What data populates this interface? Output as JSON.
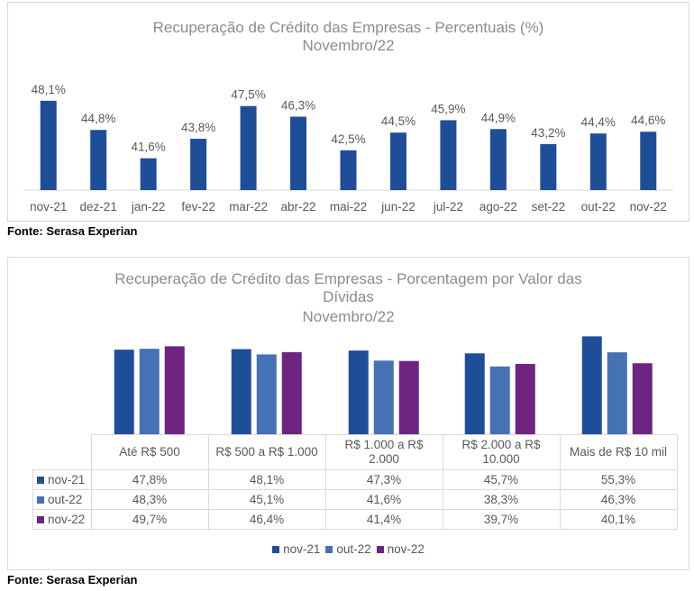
{
  "chart_data": [
    {
      "type": "bar",
      "title": "Recuperação de Crédito das Empresas - Percentuais (%)",
      "subtitle": "Novembro/22",
      "categories": [
        "nov-21",
        "dez-21",
        "jan-22",
        "fev-22",
        "mar-22",
        "abr-22",
        "mai-22",
        "jun-22",
        "jul-22",
        "ago-22",
        "set-22",
        "out-22",
        "nov-22"
      ],
      "values": [
        48.1,
        44.8,
        41.6,
        43.8,
        47.5,
        46.3,
        42.5,
        44.5,
        45.9,
        44.9,
        43.2,
        44.4,
        44.6
      ],
      "labels": [
        "48,1%",
        "44,8%",
        "41,6%",
        "43,8%",
        "47,5%",
        "46,3%",
        "42,5%",
        "44,5%",
        "45,9%",
        "44,9%",
        "43,2%",
        "44,4%",
        "44,6%"
      ],
      "ylim": [
        38,
        49
      ],
      "color": "#1f4e99",
      "grid": false
    },
    {
      "type": "bar",
      "title": "Recuperação de Crédito das Empresas - Porcentagem por Valor das Dívidas",
      "subtitle": "Novembro/22",
      "categories": [
        "Até R$ 500",
        "R$ 500 a R$ 1.000",
        "R$ 1.000 a R$ 2.000",
        "R$ 2.000 a R$ 10.000",
        "Mais de R$ 10 mil"
      ],
      "series": [
        {
          "name": "nov-21",
          "color": "#1f4e99",
          "values": [
            47.8,
            48.1,
            47.3,
            45.7,
            55.3
          ],
          "labels": [
            "47,8%",
            "48,1%",
            "47,3%",
            "45,7%",
            "55,3%"
          ]
        },
        {
          "name": "out-22",
          "color": "#4472b4",
          "values": [
            48.3,
            45.1,
            41.6,
            38.3,
            46.3
          ],
          "labels": [
            "48,3%",
            "45,1%",
            "41,6%",
            "38,3%",
            "46,3%"
          ]
        },
        {
          "name": "nov-22",
          "color": "#6e2481",
          "values": [
            49.7,
            46.4,
            41.4,
            39.7,
            40.1
          ],
          "labels": [
            "49,7%",
            "46,4%",
            "41,4%",
            "39,7%",
            "40,1%"
          ]
        }
      ],
      "ylim": [
        0,
        56
      ],
      "data_table": true,
      "legend_position": "bottom",
      "grid": false
    }
  ],
  "chart1": {
    "title": "Recuperação de Crédito das Empresas - Percentuais (%)",
    "subtitle": "Novembro/22"
  },
  "chart2": {
    "title_line1": "Recuperação de Crédito das Empresas - Porcentagem por Valor das",
    "title_line2": "Dívidas",
    "subtitle": "Novembro/22",
    "headers": [
      [
        "Até R$ 500"
      ],
      [
        "R$ 500 a R$ 1.000"
      ],
      [
        "R$ 1.000 a R$",
        "2.000"
      ],
      [
        "R$ 2.000 a R$",
        "10.000"
      ],
      [
        "Mais de R$ 10 mil"
      ]
    ]
  },
  "source": "Fonte: Serasa Experian"
}
